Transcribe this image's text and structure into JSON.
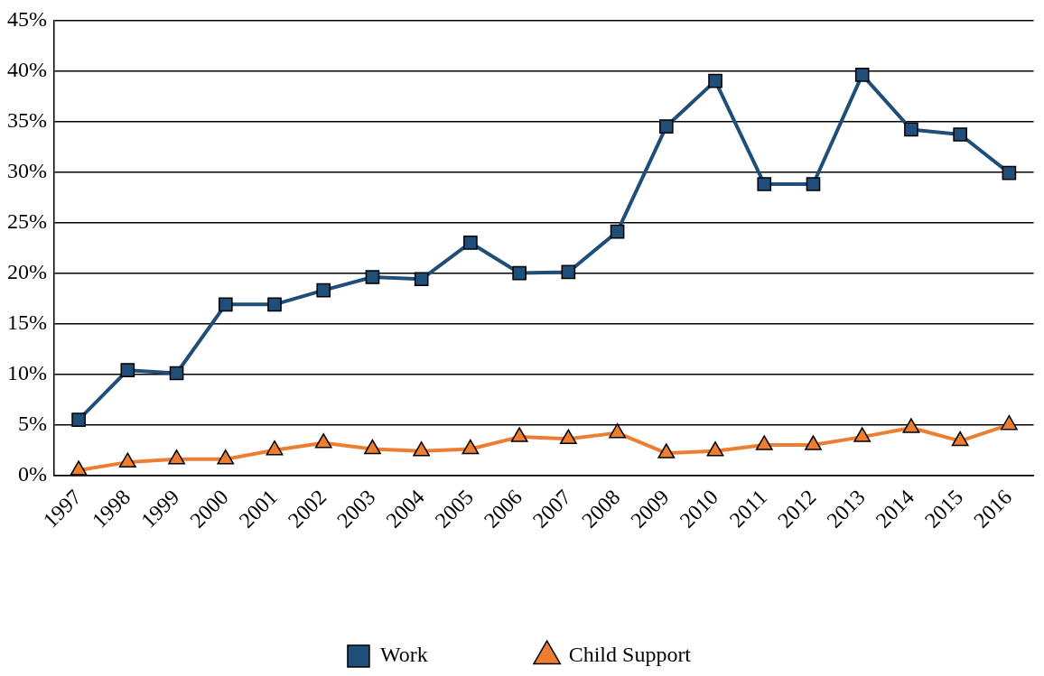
{
  "chart_data": {
    "type": "line",
    "categories": [
      "1997",
      "1998",
      "1999",
      "2000",
      "2001",
      "2002",
      "2003",
      "2004",
      "2005",
      "2006",
      "2007",
      "2008",
      "2009",
      "2010",
      "2011",
      "2012",
      "2013",
      "2014",
      "2015",
      "2016"
    ],
    "series": [
      {
        "name": "Work",
        "color": "#1f4e79",
        "marker": "square",
        "values": [
          5.5,
          10.4,
          10.1,
          16.9,
          16.9,
          18.3,
          19.6,
          19.4,
          23.0,
          20.0,
          20.1,
          24.1,
          34.5,
          39.0,
          28.8,
          28.8,
          39.6,
          34.2,
          33.7,
          29.9
        ]
      },
      {
        "name": "Child Support",
        "color": "#ed7d31",
        "marker": "triangle",
        "values": [
          0.5,
          1.3,
          1.6,
          1.6,
          2.5,
          3.2,
          2.6,
          2.4,
          2.6,
          3.8,
          3.6,
          4.2,
          2.2,
          2.4,
          3.0,
          3.0,
          3.8,
          4.7,
          3.4,
          5.0
        ]
      }
    ],
    "ylim": [
      0,
      45
    ],
    "yticks": [
      {
        "value": 0,
        "label": "0%"
      },
      {
        "value": 5,
        "label": "5%"
      },
      {
        "value": 10,
        "label": "10%"
      },
      {
        "value": 15,
        "label": "15%"
      },
      {
        "value": 20,
        "label": "20%"
      },
      {
        "value": 25,
        "label": "25%"
      },
      {
        "value": 30,
        "label": "30%"
      },
      {
        "value": 35,
        "label": "35%"
      },
      {
        "value": 40,
        "label": "40%"
      },
      {
        "value": 45,
        "label": "45%"
      }
    ],
    "grid": "y",
    "legend": "bottom"
  }
}
